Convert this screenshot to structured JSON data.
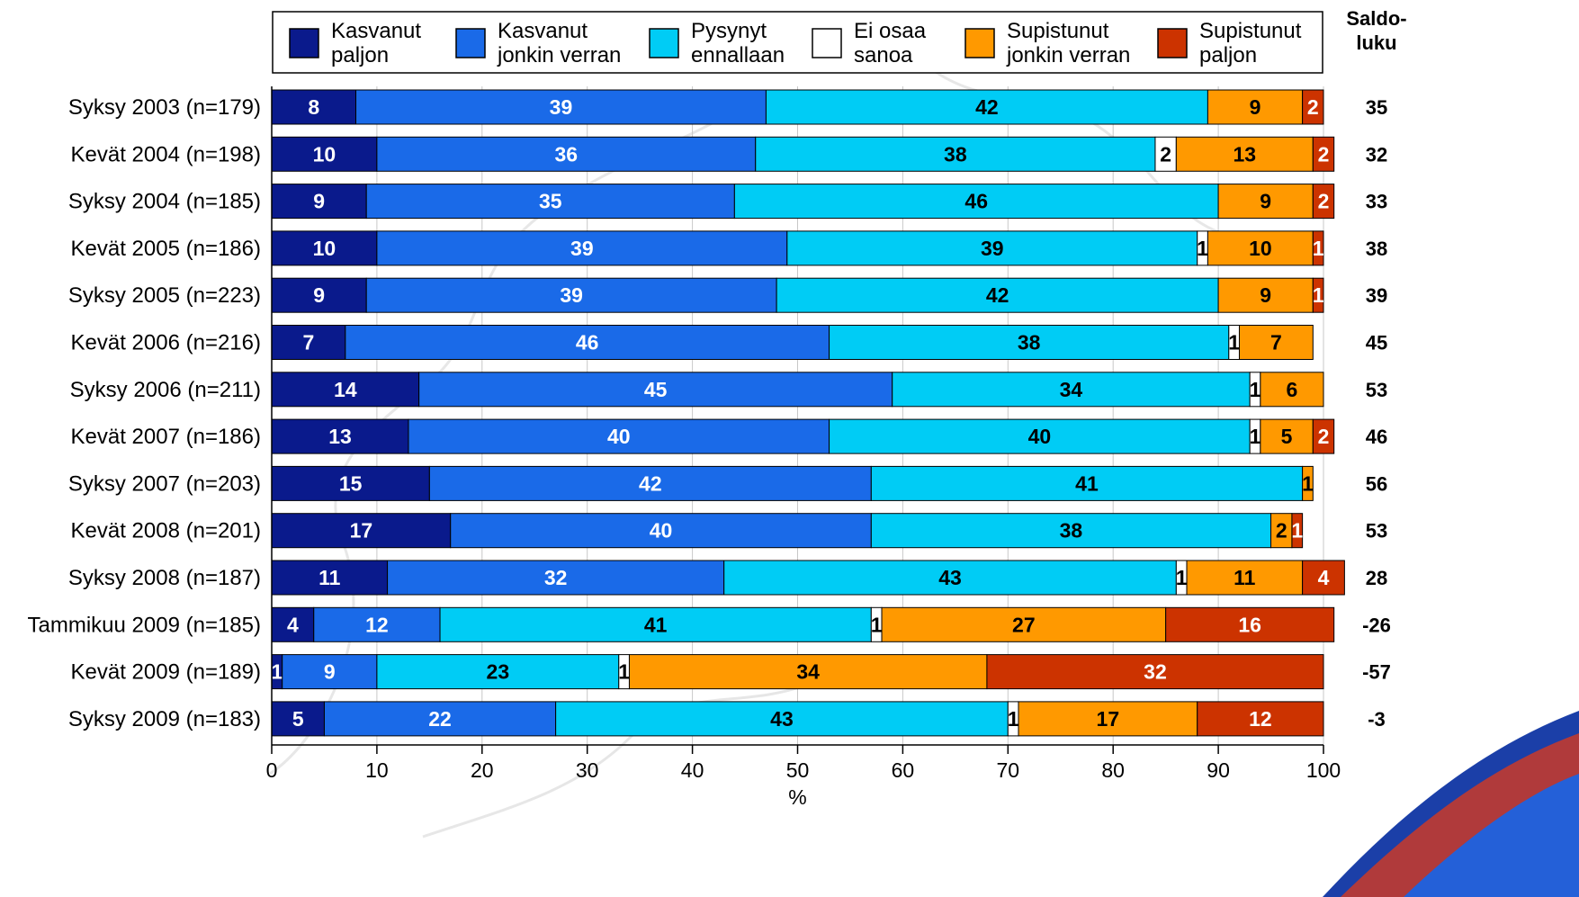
{
  "chart_data": {
    "type": "bar",
    "orientation": "horizontal",
    "stacked": true,
    "xlabel": "%",
    "xlim": [
      0,
      100
    ],
    "xticks": [
      "0",
      "10",
      "20",
      "30",
      "40",
      "50",
      "60",
      "70",
      "80",
      "90",
      "100"
    ],
    "grid": "vertical",
    "legend_position": "top",
    "saldo_header": "Saldo-\nluku",
    "categories": [
      "Syksy 2003 (n=179)",
      "Kevät 2004 (n=198)",
      "Syksy 2004 (n=185)",
      "Kevät 2005 (n=186)",
      "Syksy 2005 (n=223)",
      "Kevät 2006 (n=216)",
      "Syksy 2006 (n=211)",
      "Kevät 2007 (n=186)",
      "Syksy 2007 (n=203)",
      "Kevät 2008 (n=201)",
      "Syksy 2008 (n=187)",
      "Tammikuu 2009 (n=185)",
      "Kevät 2009 (n=189)",
      "Syksy 2009 (n=183)"
    ],
    "series": [
      {
        "name": "Kasvanut\npaljon",
        "color": "#0a1a8c",
        "label_color": "#ffffff",
        "values": [
          8,
          10,
          9,
          10,
          9,
          7,
          14,
          13,
          15,
          17,
          11,
          4,
          1,
          5
        ]
      },
      {
        "name": "Kasvanut\njonkin verran",
        "color": "#1a6ae8",
        "label_color": "#ffffff",
        "values": [
          39,
          36,
          35,
          39,
          39,
          46,
          45,
          40,
          42,
          40,
          32,
          12,
          9,
          22
        ]
      },
      {
        "name": "Pysynyt\nennallaan",
        "color": "#00ccf5",
        "label_color": "#000000",
        "values": [
          42,
          38,
          46,
          39,
          42,
          38,
          34,
          40,
          41,
          38,
          43,
          41,
          23,
          43
        ]
      },
      {
        "name": "Ei osaa\nsanoa",
        "color": "#ffffff",
        "label_color": "#000000",
        "values": [
          0,
          2,
          0,
          1,
          0,
          1,
          1,
          1,
          0,
          0,
          1,
          1,
          1,
          1
        ]
      },
      {
        "name": "Supistunut\njonkin verran",
        "color": "#ff9900",
        "label_color": "#000000",
        "values": [
          9,
          13,
          9,
          10,
          9,
          7,
          6,
          5,
          1,
          2,
          11,
          27,
          34,
          17
        ]
      },
      {
        "name": "Supistunut\npaljon",
        "color": "#cc3300",
        "label_color": "#ffffff",
        "values": [
          2,
          2,
          2,
          1,
          1,
          0,
          0,
          2,
          0,
          1,
          4,
          16,
          32,
          12
        ]
      }
    ],
    "saldo": [
      "35",
      "32",
      "33",
      "38",
      "39",
      "45",
      "53",
      "46",
      "56",
      "53",
      "28",
      "-26",
      "-57",
      "-3"
    ]
  }
}
